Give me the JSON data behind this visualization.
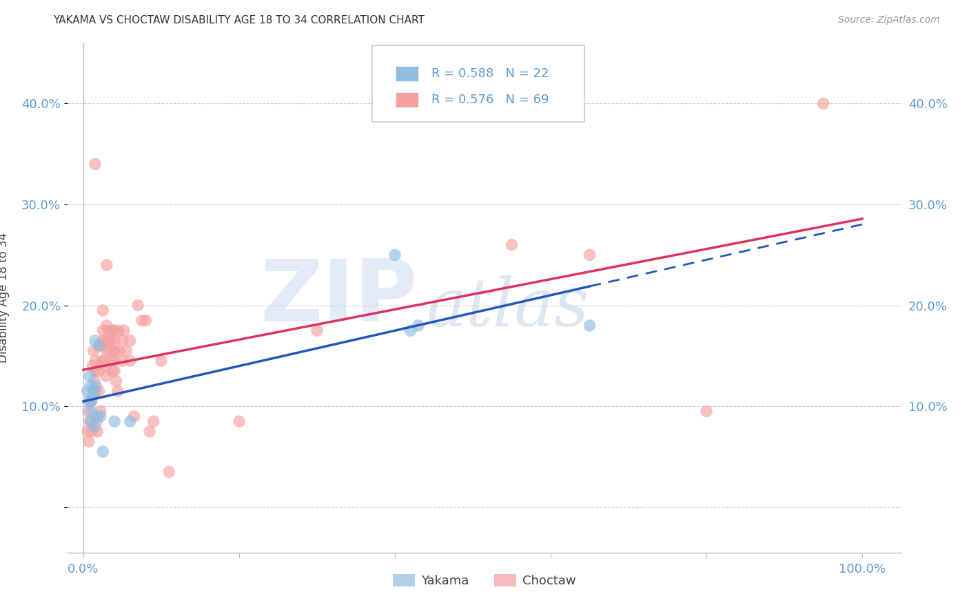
{
  "title": "YAKAMA VS CHOCTAW DISABILITY AGE 18 TO 34 CORRELATION CHART",
  "source": "Source: ZipAtlas.com",
  "ylabel": "Disability Age 18 to 34",
  "yakama_color": "#90bce0",
  "choctaw_color": "#f4a0a0",
  "yakama_line_color": "#2255bb",
  "choctaw_line_color": "#e03060",
  "axis_tick_color": "#5b9bd5",
  "background_color": "#ffffff",
  "grid_color": "#cccccc",
  "legend_R_yakama": "R = 0.588",
  "legend_N_yakama": "N = 22",
  "legend_R_choctaw": "R = 0.576",
  "legend_N_choctaw": "N = 69",
  "yakama_scatter": [
    [
      0.005,
      0.115
    ],
    [
      0.007,
      0.105
    ],
    [
      0.008,
      0.13
    ],
    [
      0.009,
      0.12
    ],
    [
      0.01,
      0.095
    ],
    [
      0.01,
      0.085
    ],
    [
      0.01,
      0.105
    ],
    [
      0.012,
      0.11
    ],
    [
      0.013,
      0.115
    ],
    [
      0.014,
      0.08
    ],
    [
      0.015,
      0.165
    ],
    [
      0.016,
      0.12
    ],
    [
      0.018,
      0.09
    ],
    [
      0.02,
      0.16
    ],
    [
      0.022,
      0.09
    ],
    [
      0.025,
      0.055
    ],
    [
      0.04,
      0.085
    ],
    [
      0.06,
      0.085
    ],
    [
      0.4,
      0.25
    ],
    [
      0.42,
      0.175
    ],
    [
      0.43,
      0.18
    ],
    [
      0.65,
      0.18
    ]
  ],
  "choctaw_scatter": [
    [
      0.005,
      0.075
    ],
    [
      0.006,
      0.095
    ],
    [
      0.007,
      0.065
    ],
    [
      0.008,
      0.085
    ],
    [
      0.009,
      0.105
    ],
    [
      0.01,
      0.075
    ],
    [
      0.01,
      0.105
    ],
    [
      0.012,
      0.14
    ],
    [
      0.013,
      0.155
    ],
    [
      0.014,
      0.125
    ],
    [
      0.015,
      0.34
    ],
    [
      0.015,
      0.145
    ],
    [
      0.015,
      0.135
    ],
    [
      0.016,
      0.115
    ],
    [
      0.017,
      0.085
    ],
    [
      0.018,
      0.075
    ],
    [
      0.02,
      0.16
    ],
    [
      0.02,
      0.135
    ],
    [
      0.02,
      0.115
    ],
    [
      0.022,
      0.095
    ],
    [
      0.023,
      0.16
    ],
    [
      0.024,
      0.145
    ],
    [
      0.025,
      0.175
    ],
    [
      0.025,
      0.195
    ],
    [
      0.025,
      0.165
    ],
    [
      0.026,
      0.145
    ],
    [
      0.027,
      0.165
    ],
    [
      0.028,
      0.14
    ],
    [
      0.029,
      0.13
    ],
    [
      0.03,
      0.24
    ],
    [
      0.03,
      0.18
    ],
    [
      0.03,
      0.155
    ],
    [
      0.032,
      0.175
    ],
    [
      0.033,
      0.165
    ],
    [
      0.034,
      0.155
    ],
    [
      0.035,
      0.165
    ],
    [
      0.036,
      0.145
    ],
    [
      0.037,
      0.135
    ],
    [
      0.038,
      0.175
    ],
    [
      0.039,
      0.155
    ],
    [
      0.04,
      0.175
    ],
    [
      0.04,
      0.155
    ],
    [
      0.04,
      0.145
    ],
    [
      0.04,
      0.135
    ],
    [
      0.04,
      0.165
    ],
    [
      0.042,
      0.125
    ],
    [
      0.044,
      0.115
    ],
    [
      0.045,
      0.175
    ],
    [
      0.046,
      0.155
    ],
    [
      0.05,
      0.165
    ],
    [
      0.05,
      0.145
    ],
    [
      0.052,
      0.175
    ],
    [
      0.055,
      0.155
    ],
    [
      0.06,
      0.165
    ],
    [
      0.06,
      0.145
    ],
    [
      0.065,
      0.09
    ],
    [
      0.07,
      0.2
    ],
    [
      0.075,
      0.185
    ],
    [
      0.08,
      0.185
    ],
    [
      0.085,
      0.075
    ],
    [
      0.09,
      0.085
    ],
    [
      0.1,
      0.145
    ],
    [
      0.11,
      0.035
    ],
    [
      0.2,
      0.085
    ],
    [
      0.3,
      0.175
    ],
    [
      0.55,
      0.26
    ],
    [
      0.65,
      0.25
    ],
    [
      0.8,
      0.095
    ],
    [
      0.95,
      0.4
    ]
  ],
  "xlim": [
    -0.02,
    1.05
  ],
  "ylim": [
    -0.045,
    0.46
  ],
  "figsize": [
    14.06,
    8.92
  ],
  "dpi": 100
}
